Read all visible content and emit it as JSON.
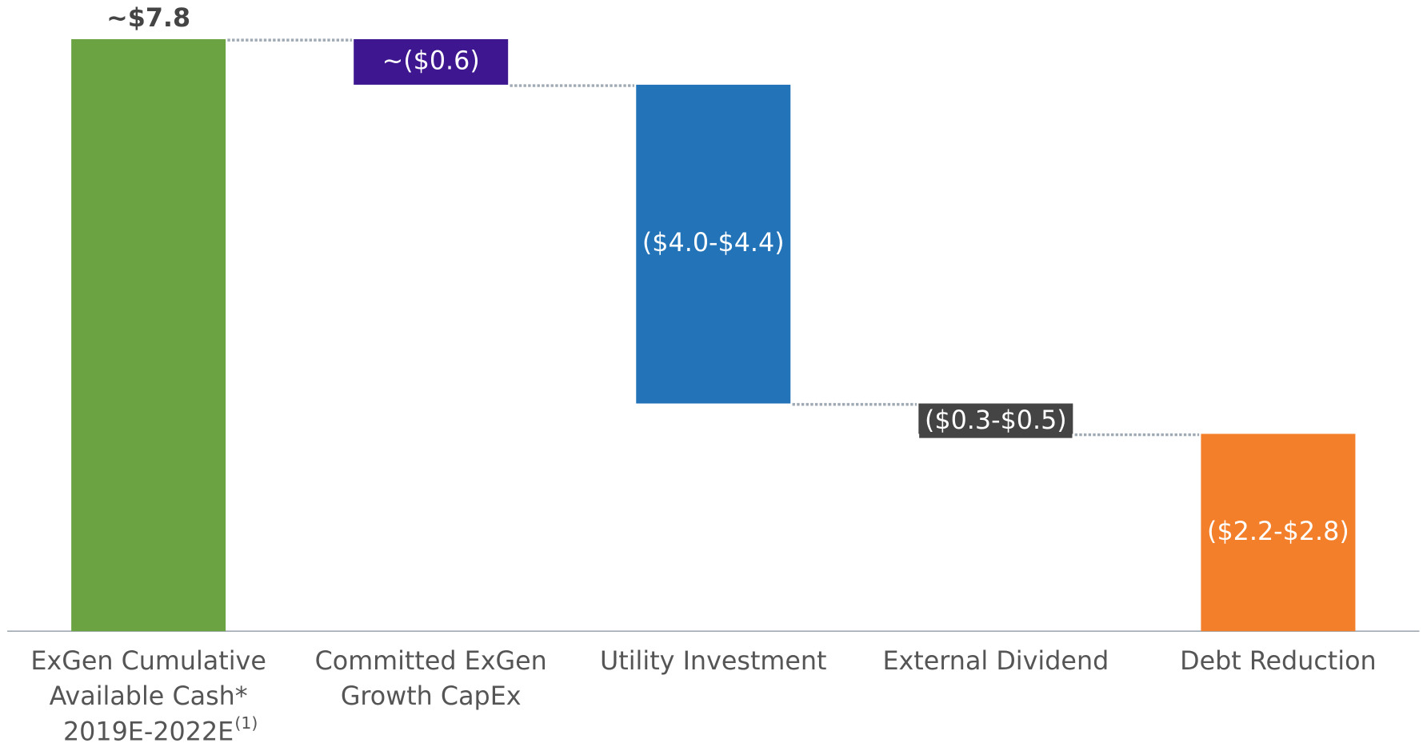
{
  "chart_data": {
    "type": "waterfall",
    "categories": [
      [
        "ExGen Cumulative",
        "Available Cash*",
        "2019E-2022E"
      ],
      [
        "Committed ExGen",
        "Growth CapEx"
      ],
      [
        "Utility Investment"
      ],
      [
        "External Dividend"
      ],
      [
        "Debt Reduction"
      ]
    ],
    "footnote_marker": "(1)",
    "values": [
      7.8,
      -0.6,
      -4.2,
      -0.4,
      -2.6
    ],
    "value_labels": [
      "~$7.8",
      "~($0.6)",
      "($4.0-$4.4)",
      "($0.3-$0.5)",
      "($2.2-$2.8)"
    ],
    "colors": [
      "#6ba343",
      "#3e1690",
      "#2373b9",
      "#444444",
      "#f47f2a"
    ]
  }
}
